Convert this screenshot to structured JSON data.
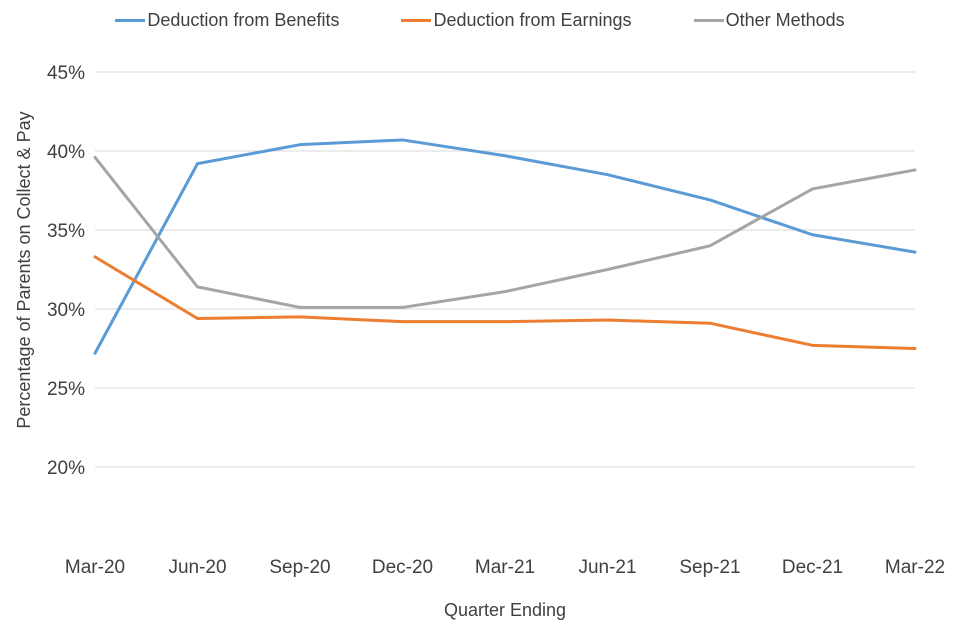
{
  "chart_data": {
    "type": "line",
    "title": "",
    "xlabel": "Quarter Ending",
    "ylabel": "Percentage of Parents on Collect & Pay",
    "categories": [
      "Mar-20",
      "Jun-20",
      "Sep-20",
      "Dec-20",
      "Mar-21",
      "Jun-21",
      "Sep-21",
      "Dec-21",
      "Mar-22"
    ],
    "yticks": [
      20,
      25,
      30,
      35,
      40,
      45
    ],
    "ytick_suffix": "%",
    "ylim": [
      15,
      45
    ],
    "grid": "horizontal",
    "legend_position": "top",
    "series": [
      {
        "name": "Deduction from Benefits",
        "color": "#5B9BD5",
        "values": [
          27.2,
          39.2,
          40.4,
          40.7,
          39.7,
          38.5,
          36.9,
          34.7,
          33.6
        ]
      },
      {
        "name": "Deduction from Earnings",
        "color": "#ED7D31",
        "values": [
          33.3,
          29.4,
          29.5,
          29.2,
          29.2,
          29.3,
          29.1,
          27.7,
          27.5
        ]
      },
      {
        "name": "Other Methods",
        "color": "#A5A5A5",
        "values": [
          39.6,
          31.4,
          30.1,
          30.1,
          31.1,
          32.5,
          34.0,
          37.6,
          38.8
        ]
      }
    ]
  },
  "colors": {
    "gridline": "#D9D9D9",
    "text": "#404040"
  }
}
